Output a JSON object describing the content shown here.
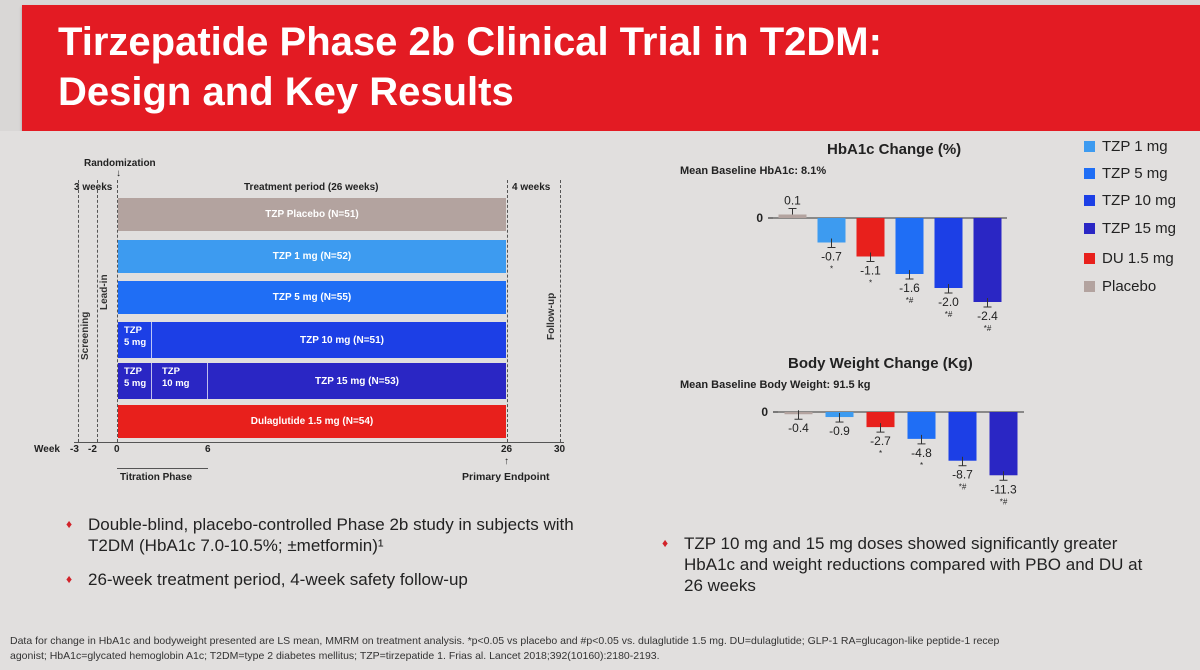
{
  "title_line1": "Tirzepatide Phase 2b Clinical Trial in T2DM:",
  "title_line2": "Design and Key Results",
  "design": {
    "randomization": "Randomization",
    "screening_weeks": "3 weeks",
    "treatment_period": "Treatment period (26 weeks)",
    "followup_weeks": "4 weeks",
    "screening": "Screening",
    "lead_in": "Lead-in",
    "follow_up": "Follow-up",
    "arms": [
      {
        "label": "TZP Placebo (N=51)",
        "color": "#b3a39f"
      },
      {
        "label": "TZP 1 mg (N=52)",
        "color": "#3d9bf0"
      },
      {
        "label": "TZP 5 mg (N=55)",
        "color": "#1f6ef5"
      },
      {
        "label": "TZP 10 mg (N=51)",
        "color": "#1c3fe6",
        "seg1": "TZP\n5 mg"
      },
      {
        "label": "TZP 15 mg (N=53)",
        "color": "#2a26c4",
        "seg1": "TZP\n5 mg",
        "seg2": "TZP\n10 mg"
      },
      {
        "label": "Dulaglutide 1.5 mg (N=54)",
        "color": "#e8201c"
      }
    ],
    "week_label": "Week",
    "week_ticks": [
      "-3",
      "-2",
      "0",
      "6",
      "26",
      "30"
    ],
    "titration_phase": "Titration Phase",
    "primary_endpoint": "Primary Endpoint"
  },
  "legend": [
    {
      "label": "TZP 1 mg",
      "color": "#3d9bf0"
    },
    {
      "label": "TZP 5 mg",
      "color": "#1f6ef5"
    },
    {
      "label": "TZP 10 mg",
      "color": "#1c3fe6"
    },
    {
      "label": "TZP 15 mg",
      "color": "#2a26c4"
    },
    {
      "label": "DU 1.5 mg",
      "color": "#e8201c"
    },
    {
      "label": "Placebo",
      "color": "#b3a39f"
    }
  ],
  "chart_data": [
    {
      "type": "bar",
      "title": "HbA1c Change (%)",
      "subtitle": "Mean Baseline HbA1c: 8.1%",
      "ytick": "0",
      "categories": [
        "Placebo",
        "TZP 1 mg",
        "DU 1.5 mg",
        "TZP 5 mg",
        "TZP 10 mg",
        "TZP 15 mg"
      ],
      "values": [
        0.1,
        -0.7,
        -1.1,
        -1.6,
        -2.0,
        -2.4
      ],
      "value_labels": [
        "0.1",
        "-0.7",
        "-1.1",
        "-1.6",
        "-2.0",
        "-2.4"
      ],
      "significance": [
        "",
        "*",
        "*",
        "*#",
        "*#",
        "*#"
      ],
      "colors": [
        "#b3a39f",
        "#3d9bf0",
        "#e8201c",
        "#1f6ef5",
        "#1c3fe6",
        "#2a26c4"
      ]
    },
    {
      "type": "bar",
      "title": "Body Weight Change (Kg)",
      "subtitle": "Mean Baseline Body Weight: 91.5 kg",
      "ytick": "0",
      "categories": [
        "Placebo",
        "TZP 1 mg",
        "DU 1.5 mg",
        "TZP 5 mg",
        "TZP 10 mg",
        "TZP 15 mg"
      ],
      "values": [
        -0.4,
        -0.9,
        -2.7,
        -4.8,
        -8.7,
        -11.3
      ],
      "value_labels": [
        "-0.4",
        "-0.9",
        "-2.7",
        "-4.8",
        "-8.7",
        "-11.3"
      ],
      "significance": [
        "",
        "",
        "*",
        "*",
        "*#",
        "*#"
      ],
      "colors": [
        "#b3a39f",
        "#3d9bf0",
        "#e8201c",
        "#1f6ef5",
        "#1c3fe6",
        "#2a26c4"
      ]
    }
  ],
  "bullets_left": [
    "Double-blind, placebo-controlled Phase 2b study in subjects with T2DM (HbA1c 7.0-10.5%; ±metformin)¹",
    "26-week treatment period, 4-week safety follow-up"
  ],
  "bullet_right": "TZP 10 mg and 15 mg doses showed significantly greater HbA1c and weight reductions compared with PBO and DU at 26 weeks",
  "footnote_line1": "Data for change in HbA1c and bodyweight presented are LS mean, MMRM on treatment analysis. *p<0.05 vs placebo and #p<0.05 vs. dulaglutide 1.5 mg. DU=dulaglutide; GLP-1 RA=glucagon-like peptide-1 recep",
  "footnote_line2": "agonist; HbA1c=glycated hemoglobin A1c; T2DM=type 2 diabetes mellitus; TZP=tirzepatide     1. Frias al. Lancet 2018;392(10160):2180-2193."
}
